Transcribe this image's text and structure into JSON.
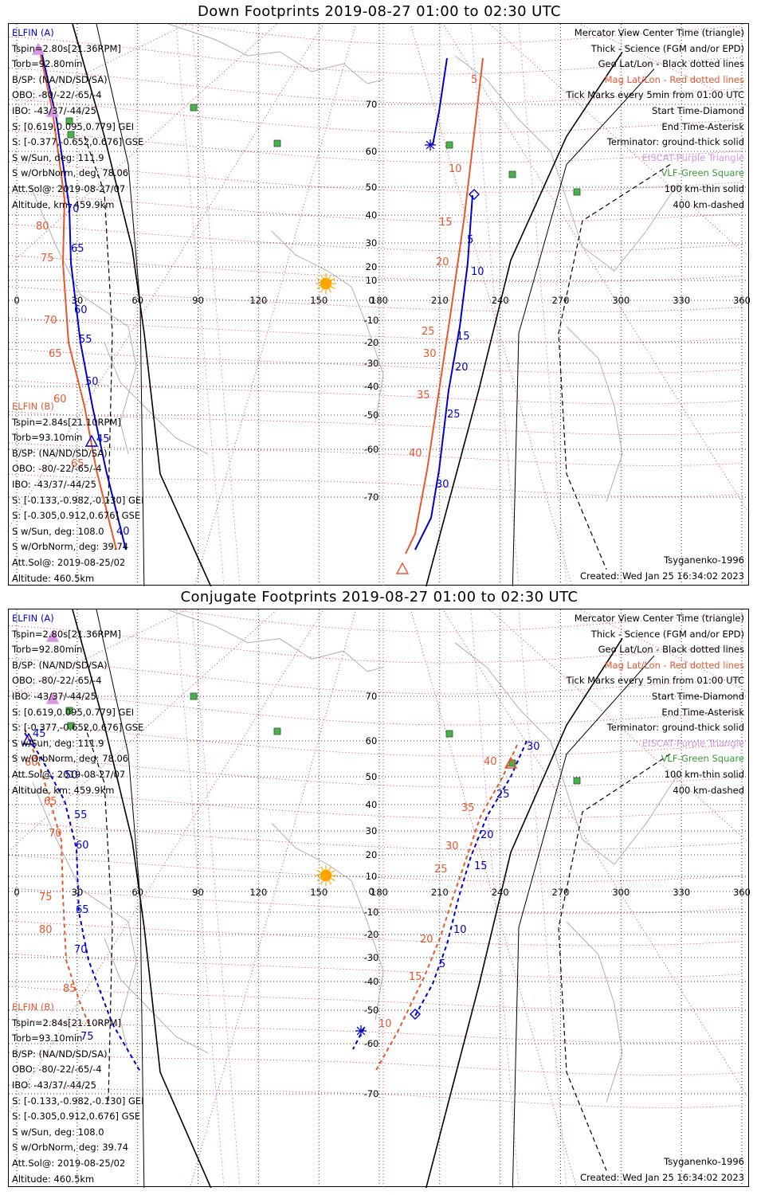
{
  "panels": [
    {
      "title": "Down Footprints 2019-08-27 01:00 to 02:30 UTC",
      "elfin_a": {
        "name": "ELFIN (A)",
        "lines": [
          "Tspin=2.80s[21.36RPM]",
          "Torb=92.80min",
          "B/SP: (NA/ND/SD/SA)",
          "OBO: -80/-22/-65/-4",
          "IBO: -43/37/-44/25",
          "S: [0.619,0.095,0.779] GEI",
          "S: [-0.377,-0.652,0.676] GSE",
          "S w/Sun, deg: 111.9",
          "S w/OrbNorm, deg: 78.06",
          "Att.Sol@: 2019-08-27/07",
          "Altitude, km: 459.9km"
        ]
      },
      "elfin_b": {
        "name": "ELFIN (B)",
        "lines": [
          "Tspin=2.84s[21.10RPM]",
          "Torb=93.10min",
          "B/SP: (NA/ND/SD/SA)",
          "OBO: -80/-22/-65/-4",
          "IBO: -43/37/-44/25",
          "S: [-0.133,-0.982,-0.130] GEI",
          "S: [-0.305,0.912,0.676] GSE",
          "S w/Sun, deg: 108.0",
          "S w/OrbNorm, deg: 39.74",
          "Att.Sol@: 2019-08-25/02",
          "Altitude: 460.5km"
        ]
      },
      "legend": [
        "Mercator View Center Time (triangle)",
        "Thick - Science (FGM and/or EPD)",
        "Geo Lat/Lon - Black dotted lines",
        "Mag Lat/Lon - Red dotted lines",
        "Tick Marks every 5min from 01:00 UTC",
        "Start Time-Diamond",
        "End Time-Asterisk",
        "Terminator: ground-thick solid",
        "EISCAT-Purple Triangle",
        "VLF-Green Square",
        "100 km-thin solid",
        "400 km-dashed"
      ],
      "model": "Tsyganenko-1996",
      "created": "Created: Wed Jan 25 16:34:02 2023",
      "a_ticks": [
        "70",
        "65",
        "60",
        "55",
        "50",
        "45",
        "40",
        "5",
        "10",
        "15",
        "20",
        "25",
        "30"
      ],
      "b_ticks": [
        "80",
        "75",
        "70",
        "65",
        "60",
        "65",
        "5",
        "10",
        "15",
        "20",
        "25",
        "30",
        "35",
        "40"
      ]
    },
    {
      "title": "Conjugate Footprints 2019-08-27 01:00 to 02:30 UTC",
      "elfin_a": {
        "name": "ELFIN (A)",
        "lines": [
          "Tspin=2.80s[21.36RPM]",
          "Torb=92.80min",
          "B/SP: (NA/ND/SD/SA)",
          "OBO: -80/-22/-65/-4",
          "IBO: -43/37/-44/25",
          "S: [0.619,0.095,0.779] GEI",
          "S: [-0.377,-0.652,0.676] GSE",
          "S w/Sun, deg: 111.9",
          "S w/OrbNorm, deg: 78.06",
          "Att.Sol@: 2019-08-27/07",
          "Altitude, km: 459.9km"
        ]
      },
      "elfin_b": {
        "name": "ELFIN (B)",
        "lines": [
          "Tspin=2.84s[21.10RPM]",
          "Torb=93.10min",
          "B/SP: (NA/ND/SD/SA)",
          "OBO: -80/-22/-65/-4",
          "IBO: -43/37/-44/25",
          "S: [-0.133,-0.982,-0.130] GEI",
          "S: [-0.305,0.912,0.676] GSE",
          "S w/Sun, deg: 108.0",
          "S w/OrbNorm, deg: 39.74",
          "Att.Sol@: 2019-08-25/02",
          "Altitude: 460.5km"
        ]
      },
      "legend": [
        "Mercator View Center Time (triangle)",
        "Thick - Science (FGM and/or EPD)",
        "Geo Lat/Lon - Black dotted lines",
        "Mag Lat/Lon - Red dotted lines",
        "Tick Marks every 5min from 01:00 UTC",
        "Start Time-Diamond",
        "End Time-Asterisk",
        "Terminator: ground-thick solid",
        "EISCAT-Purple Triangle",
        "VLF-Green Square",
        "100 km-thin solid",
        "400 km-dashed"
      ],
      "model": "Tsyganenko-1996",
      "created": "Created: Wed Jan 25 16:34:02 2023",
      "a_ticks": [
        "45",
        "50",
        "55",
        "60",
        "65",
        "70",
        "75",
        "30",
        "25",
        "20",
        "15",
        "10",
        "5"
      ],
      "b_ticks": [
        "60",
        "65",
        "70",
        "75",
        "80",
        "85",
        "40",
        "35",
        "30",
        "25",
        "20",
        "15",
        "10"
      ]
    }
  ],
  "lon_labels": [
    "0",
    "30",
    "60",
    "90",
    "120",
    "150",
    "180",
    "210",
    "240",
    "270",
    "300",
    "330",
    "360"
  ],
  "lat_labels": [
    "70",
    "60",
    "50",
    "40",
    "30",
    "20",
    "10",
    "0",
    "-10",
    "-20",
    "-30",
    "-40",
    "-50",
    "-60",
    "-70"
  ],
  "colors": {
    "elfin_a": "#0000cc",
    "elfin_b": "#e8562e",
    "mag_grid": "#e03030",
    "eiscat": "#d896e4",
    "vlf": "#4caf50",
    "sun": "#ffa500"
  }
}
